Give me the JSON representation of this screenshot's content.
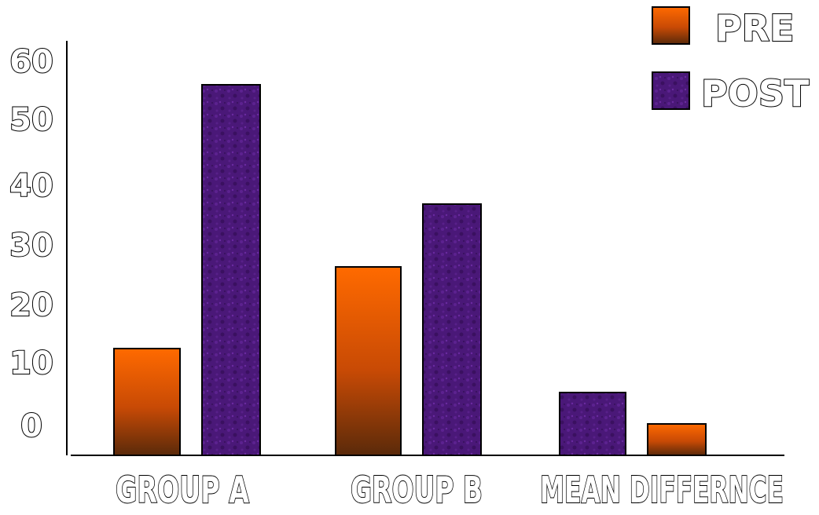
{
  "chart_data": {
    "type": "bar",
    "title": "",
    "xlabel": "",
    "ylabel": "",
    "ylim": [
      0,
      66
    ],
    "y_ticks": [
      "0",
      "10",
      "20",
      "30",
      "40",
      "50",
      "60"
    ],
    "categories": [
      "GROUP A",
      "GROUP B",
      "MEAN DIFFERNCE"
    ],
    "bars": [
      {
        "category": "GROUP A",
        "series": "PRE",
        "value": 17
      },
      {
        "category": "GROUP A",
        "series": "POST",
        "value": 59
      },
      {
        "category": "GROUP B",
        "series": "PRE",
        "value": 30
      },
      {
        "category": "GROUP B",
        "series": "POST",
        "value": 40
      },
      {
        "category": "MEAN DIFFERNCE",
        "series": "POST",
        "value": 10
      },
      {
        "category": "MEAN DIFFERNCE",
        "series": "PRE",
        "value": 5
      }
    ],
    "legend": {
      "position": "top-right",
      "entries": [
        {
          "name": "PRE",
          "color_top": "#ff6a00",
          "color_bottom": "#5a2a0a"
        },
        {
          "name": "POST",
          "color": "#4a1878"
        }
      ]
    },
    "grid": false
  }
}
